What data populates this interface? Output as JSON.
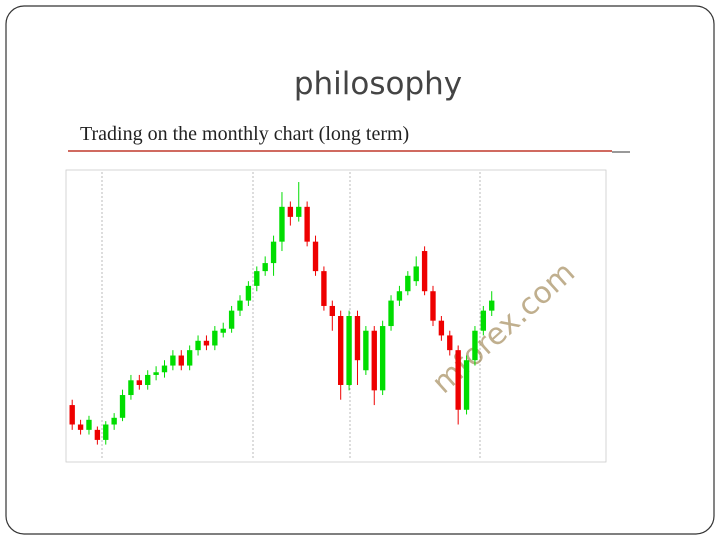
{
  "slide": {
    "title": "philosophy",
    "subtitle": "Trading on the monthly chart (long term)"
  },
  "chart_data": {
    "type": "candlestick",
    "watermark": "mforex.com",
    "up_color": "#00dd00",
    "down_color": "#ee0000",
    "ylim": [
      1.19,
      1.62
    ],
    "open": [
      1.272,
      1.243,
      1.235,
      1.235,
      1.22,
      1.243,
      1.253,
      1.287,
      1.309,
      1.302,
      1.317,
      1.321,
      1.331,
      1.346,
      1.331,
      1.354,
      1.368,
      1.361,
      1.38,
      1.386,
      1.413,
      1.428,
      1.45,
      1.472,
      1.484,
      1.516,
      1.568,
      1.553,
      1.568,
      1.516,
      1.472,
      1.42,
      1.405,
      1.302,
      1.405,
      1.324,
      1.383,
      1.294,
      1.39,
      1.428,
      1.442,
      1.457,
      1.502,
      1.442,
      1.398,
      1.376,
      1.354,
      1.265,
      1.339,
      1.383,
      1.413
    ],
    "high": [
      1.28,
      1.25,
      1.256,
      1.24,
      1.248,
      1.26,
      1.295,
      1.317,
      1.317,
      1.324,
      1.33,
      1.339,
      1.354,
      1.354,
      1.361,
      1.376,
      1.376,
      1.39,
      1.395,
      1.42,
      1.436,
      1.457,
      1.479,
      1.494,
      1.525,
      1.59,
      1.576,
      1.605,
      1.576,
      1.525,
      1.479,
      1.428,
      1.413,
      1.413,
      1.413,
      1.39,
      1.39,
      1.398,
      1.436,
      1.45,
      1.472,
      1.494,
      1.509,
      1.45,
      1.405,
      1.383,
      1.361,
      1.346,
      1.39,
      1.42,
      1.442
    ],
    "low": [
      1.235,
      1.228,
      1.228,
      1.213,
      1.213,
      1.235,
      1.248,
      1.28,
      1.295,
      1.295,
      1.309,
      1.313,
      1.324,
      1.324,
      1.324,
      1.346,
      1.354,
      1.354,
      1.373,
      1.38,
      1.405,
      1.42,
      1.442,
      1.465,
      1.465,
      1.502,
      1.54,
      1.546,
      1.509,
      1.465,
      1.413,
      1.383,
      1.28,
      1.294,
      1.302,
      1.317,
      1.272,
      1.287,
      1.383,
      1.42,
      1.436,
      1.45,
      1.436,
      1.39,
      1.368,
      1.346,
      1.243,
      1.258,
      1.331,
      1.376,
      1.405
    ],
    "close": [
      1.243,
      1.235,
      1.25,
      1.22,
      1.243,
      1.253,
      1.287,
      1.309,
      1.302,
      1.317,
      1.321,
      1.331,
      1.346,
      1.331,
      1.354,
      1.368,
      1.361,
      1.383,
      1.386,
      1.413,
      1.428,
      1.45,
      1.472,
      1.484,
      1.516,
      1.568,
      1.553,
      1.568,
      1.516,
      1.472,
      1.42,
      1.405,
      1.302,
      1.405,
      1.339,
      1.383,
      1.294,
      1.39,
      1.428,
      1.442,
      1.465,
      1.479,
      1.442,
      1.398,
      1.376,
      1.354,
      1.265,
      1.339,
      1.383,
      1.413,
      1.428
    ]
  }
}
